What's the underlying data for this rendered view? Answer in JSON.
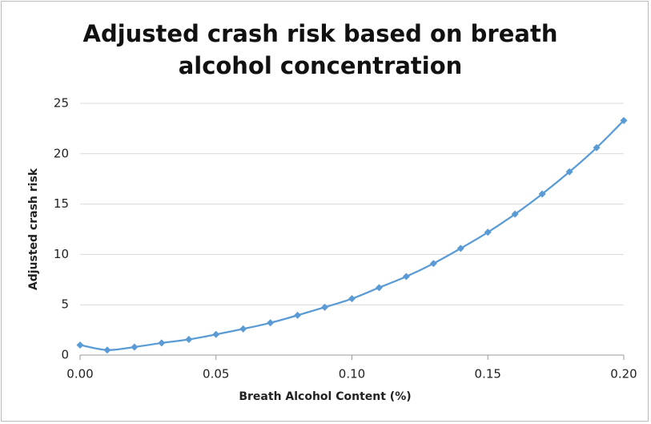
{
  "chart_data": {
    "type": "line",
    "title": "Adjusted crash risk based on breath alcohol concentration",
    "xlabel": "Breath Alcohol Content (%)",
    "ylabel": "Adjusted crash risk",
    "x": [
      0,
      0.01,
      0.02,
      0.03,
      0.04,
      0.05,
      0.06,
      0.07,
      0.08,
      0.09,
      0.1,
      0.11,
      0.12,
      0.13,
      0.14,
      0.15,
      0.16,
      0.17,
      0.18,
      0.19,
      0.2
    ],
    "series": [
      {
        "name": "Adjusted crash risk",
        "color": "#5b9bd5",
        "values": [
          1.0,
          0.5,
          0.8,
          1.2,
          1.55,
          2.05,
          2.6,
          3.2,
          3.95,
          4.75,
          5.6,
          6.7,
          7.8,
          9.1,
          10.6,
          12.2,
          14.0,
          16.0,
          18.2,
          20.6,
          23.3
        ]
      }
    ],
    "xlim": [
      0,
      0.2
    ],
    "xticks": [
      {
        "value": 0,
        "label": "0.00"
      },
      0.05,
      {
        "value": 0.1,
        "label": "0.10"
      },
      0.15,
      {
        "value": 0.2,
        "label": "0.20"
      }
    ],
    "ylim": [
      0,
      25
    ],
    "yticks": [
      0,
      5,
      10,
      15,
      20,
      25
    ],
    "grid": true
  }
}
